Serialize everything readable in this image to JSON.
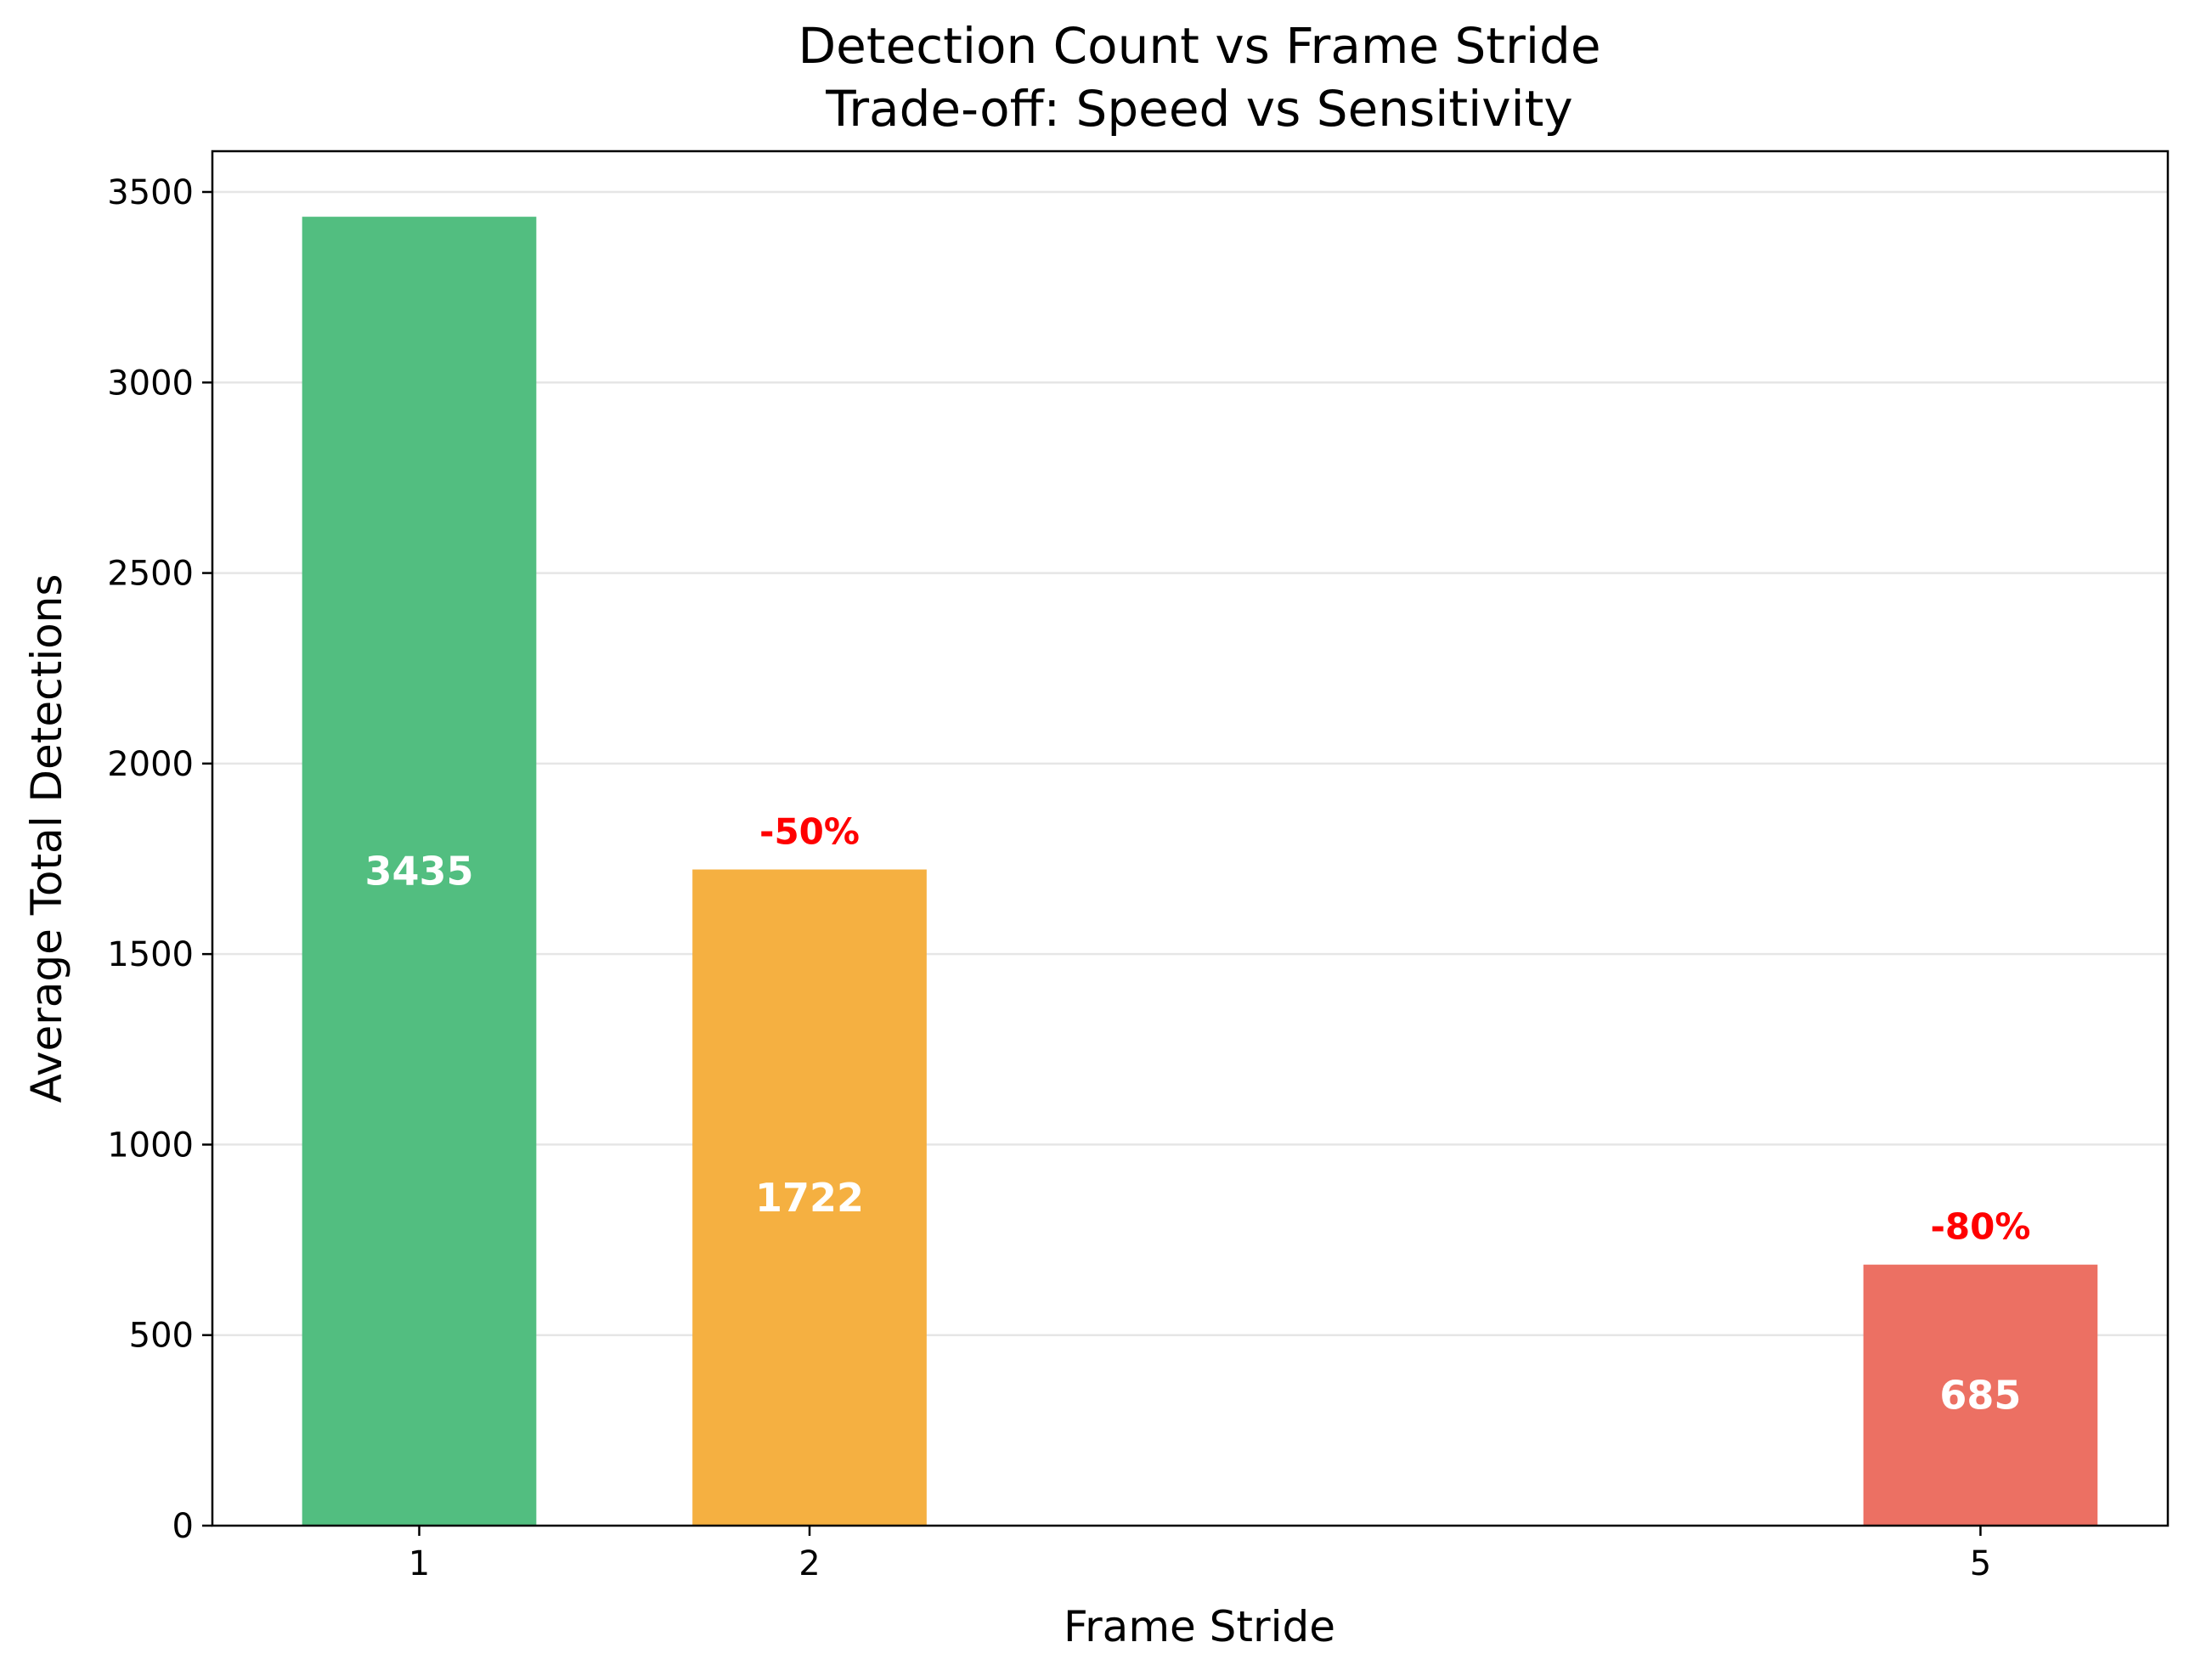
{
  "chart_data": {
    "type": "bar",
    "title": "Detection Count vs Frame Stride",
    "subtitle": "Trade-off: Speed vs Sensitivity",
    "xlabel": "Frame Stride",
    "ylabel": "Average Total Detections",
    "x": [
      1,
      2,
      5
    ],
    "values": [
      3435,
      1722,
      685
    ],
    "value_labels": [
      "3435",
      "1722",
      "685"
    ],
    "change_labels": [
      "",
      "-50%",
      "-80%"
    ],
    "colors": [
      "#52be80",
      "#f5b041",
      "#ec7063"
    ],
    "change_label_color": "#ff0000",
    "value_label_color": "#ffffff",
    "xlim": [
      0.47,
      5.48
    ],
    "ylim": [
      0,
      3607
    ],
    "yticks": [
      0,
      500,
      1000,
      1500,
      2000,
      2500,
      3000,
      3500
    ],
    "bar_width": 0.6,
    "grid": "y",
    "legend": "none"
  }
}
